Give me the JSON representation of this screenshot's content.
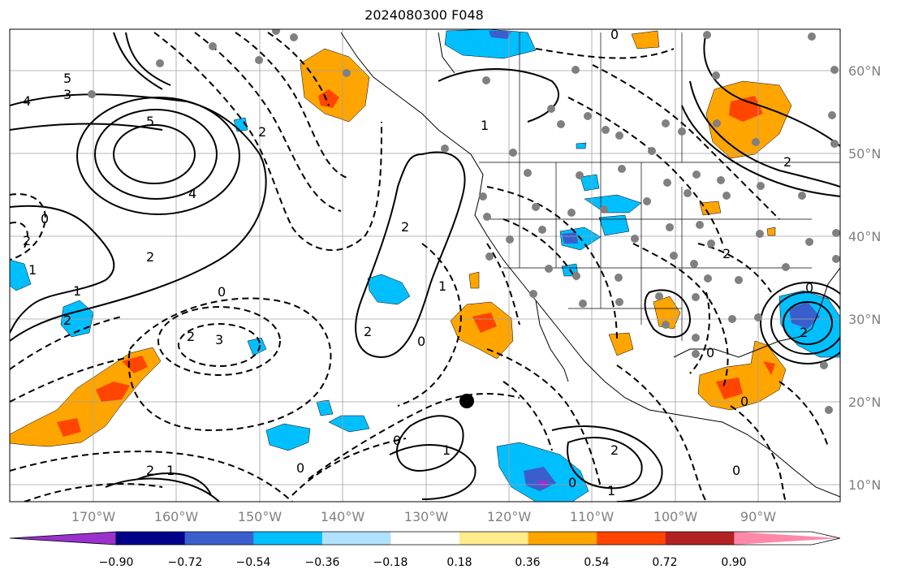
{
  "title": "2024080300 F048",
  "map": {
    "lat_labels": [
      "60°N",
      "50°N",
      "40°N",
      "30°N",
      "20°N",
      "10°N"
    ],
    "lon_labels": [
      "170°W",
      "160°W",
      "150°W",
      "140°W",
      "130°W",
      "120°W",
      "110°W",
      "100°W",
      "90°W"
    ],
    "contour_labels": [
      "5",
      "3",
      "4",
      "5",
      "2",
      "4",
      "2",
      "1",
      "2",
      "0",
      "2",
      "1",
      "2",
      "0",
      "3",
      "2",
      "1",
      "0",
      "2",
      "0",
      "1",
      "0",
      "2",
      "1",
      "0",
      "0",
      "2",
      "1",
      "0",
      "1",
      "2",
      "0",
      "2",
      "2",
      "0",
      "0"
    ]
  },
  "colorbar": {
    "tick_labels": [
      "−0.90",
      "−0.72",
      "−0.54",
      "−0.36",
      "−0.18",
      "0.18",
      "0.36",
      "0.54",
      "0.72",
      "0.90"
    ],
    "colors": [
      "#9932cc",
      "#00008b",
      "#3a5fcd",
      "#00bfff",
      "#b0e2ff",
      "#ffffff",
      "#ffec8b",
      "#ffa500",
      "#ff4500",
      "#b22222",
      "#ff88aa"
    ]
  }
}
